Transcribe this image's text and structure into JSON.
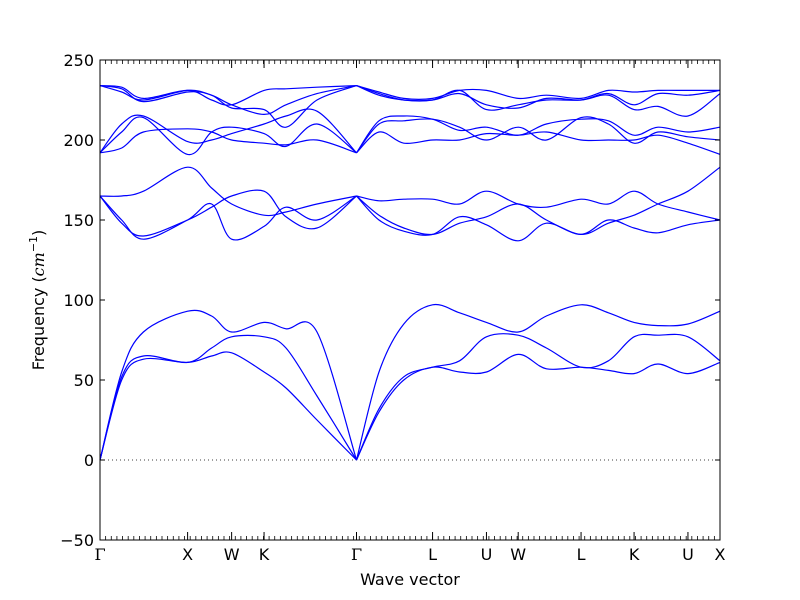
{
  "chart_data": {
    "type": "line",
    "title": "",
    "xlabel": "Wave vector",
    "ylabel": "Frequency",
    "ylabel_unit_base": "cm",
    "ylabel_unit_exp": "−1",
    "ylim": [
      -50,
      250
    ],
    "yticks": [
      -50,
      0,
      50,
      100,
      150,
      200,
      250
    ],
    "ytick_labels": [
      "−50",
      "0",
      "50",
      "100",
      "150",
      "200",
      "250"
    ],
    "xlim": [
      0,
      1
    ],
    "x_high_symmetry_points": [
      {
        "label": "Γ",
        "x": 0.0
      },
      {
        "label": "X",
        "x": 0.1413
      },
      {
        "label": "W",
        "x": 0.2123
      },
      {
        "label": "K",
        "x": 0.2646
      },
      {
        "label": "Γ",
        "x": 0.4137
      },
      {
        "label": "L",
        "x": 0.5364
      },
      {
        "label": "U",
        "x": 0.6233
      },
      {
        "label": "W",
        "x": 0.6745
      },
      {
        "label": "L",
        "x": 0.7759
      },
      {
        "label": "K",
        "x": 0.8614
      },
      {
        "label": "U",
        "x": 0.9483
      },
      {
        "label": "X",
        "x": 1.0
      }
    ],
    "zero_line": {
      "y": 0,
      "style": "dotted"
    },
    "line_color": "#0000ff",
    "grid": false,
    "legend": "none",
    "series": [
      {
        "x": [
          0,
          0.035,
          0.07,
          0.1413,
          0.18,
          0.2123,
          0.2646,
          0.3,
          0.35,
          0.4137
        ],
        "values": [
          0,
          50,
          63,
          61,
          65,
          67,
          55,
          45,
          25,
          0
        ]
      },
      {
        "x": [
          0,
          0.035,
          0.07,
          0.1413,
          0.18,
          0.2123,
          0.2646,
          0.3,
          0.35,
          0.4137
        ],
        "values": [
          0,
          52,
          65,
          61,
          70,
          77,
          77,
          70,
          40,
          0
        ]
      },
      {
        "x": [
          0,
          0.035,
          0.07,
          0.1413,
          0.18,
          0.2123,
          0.2646,
          0.3,
          0.35,
          0.4137
        ],
        "values": [
          0,
          55,
          80,
          93,
          90,
          80,
          86,
          82,
          80,
          0
        ]
      },
      {
        "x": [
          0.4137,
          0.45,
          0.49,
          0.5364,
          0.58,
          0.6233,
          0.6745,
          0.72,
          0.7759,
          0.82,
          0.8614,
          0.9,
          0.9483,
          1.0
        ],
        "values": [
          0,
          30,
          50,
          58,
          55,
          55,
          66,
          57,
          58,
          56,
          54,
          60,
          54,
          61
        ]
      },
      {
        "x": [
          0.4137,
          0.45,
          0.49,
          0.5364,
          0.58,
          0.6233,
          0.6745,
          0.72,
          0.7759,
          0.82,
          0.8614,
          0.9,
          0.9483,
          1.0
        ],
        "values": [
          0,
          32,
          52,
          58,
          62,
          77,
          78,
          70,
          58,
          62,
          77,
          78,
          77,
          62
        ]
      },
      {
        "x": [
          0.4137,
          0.45,
          0.49,
          0.5364,
          0.58,
          0.6233,
          0.6745,
          0.72,
          0.7759,
          0.82,
          0.8614,
          0.9,
          0.9483,
          1.0
        ],
        "values": [
          0,
          55,
          85,
          97,
          92,
          86,
          80,
          90,
          97,
          92,
          86,
          84,
          85,
          93
        ]
      },
      {
        "x": [
          0,
          0.035,
          0.07,
          0.1413,
          0.18,
          0.2123,
          0.2646,
          0.3,
          0.35,
          0.4137
        ],
        "values": [
          165,
          150,
          138,
          150,
          160,
          138,
          146,
          158,
          150,
          165
        ]
      },
      {
        "x": [
          0,
          0.035,
          0.07,
          0.1413,
          0.18,
          0.2123,
          0.2646,
          0.3,
          0.35,
          0.4137
        ],
        "values": [
          165,
          148,
          140,
          150,
          158,
          165,
          168,
          152,
          145,
          165
        ]
      },
      {
        "x": [
          0,
          0.035,
          0.07,
          0.1413,
          0.18,
          0.2123,
          0.2646,
          0.3,
          0.35,
          0.4137
        ],
        "values": [
          165,
          165,
          168,
          183,
          170,
          160,
          153,
          155,
          160,
          165
        ]
      },
      {
        "x": [
          0.4137,
          0.45,
          0.49,
          0.5364,
          0.58,
          0.6233,
          0.6745,
          0.72,
          0.7759,
          0.82,
          0.8614,
          0.9,
          0.9483,
          1.0
        ],
        "values": [
          165,
          150,
          143,
          141,
          152,
          147,
          137,
          148,
          141,
          150,
          145,
          142,
          147,
          150
        ]
      },
      {
        "x": [
          0.4137,
          0.45,
          0.49,
          0.5364,
          0.58,
          0.6233,
          0.6745,
          0.72,
          0.7759,
          0.82,
          0.8614,
          0.9,
          0.9483,
          1.0
        ],
        "values": [
          165,
          153,
          145,
          141,
          148,
          152,
          160,
          150,
          141,
          148,
          153,
          160,
          168,
          183
        ]
      },
      {
        "x": [
          0.4137,
          0.45,
          0.49,
          0.5364,
          0.58,
          0.6233,
          0.6745,
          0.72,
          0.7759,
          0.82,
          0.8614,
          0.9,
          0.9483,
          1.0
        ],
        "values": [
          165,
          162,
          163,
          163,
          160,
          168,
          160,
          158,
          163,
          160,
          168,
          160,
          155,
          150
        ]
      },
      {
        "x": [
          0,
          0.035,
          0.07,
          0.1413,
          0.18,
          0.2123,
          0.2646,
          0.3,
          0.35,
          0.4137
        ],
        "values": [
          192,
          195,
          205,
          207,
          205,
          200,
          198,
          197,
          200,
          192
        ]
      },
      {
        "x": [
          0,
          0.035,
          0.07,
          0.1413,
          0.18,
          0.2123,
          0.2646,
          0.3,
          0.35,
          0.4137
        ],
        "values": [
          192,
          205,
          214,
          191,
          205,
          208,
          204,
          196,
          210,
          192
        ]
      },
      {
        "x": [
          0,
          0.035,
          0.07,
          0.1413,
          0.18,
          0.2123,
          0.2646,
          0.3,
          0.35,
          0.4137
        ],
        "values": [
          192,
          210,
          215,
          199,
          200,
          204,
          210,
          215,
          218,
          192
        ]
      },
      {
        "x": [
          0.4137,
          0.45,
          0.49,
          0.5364,
          0.58,
          0.6233,
          0.6745,
          0.72,
          0.7759,
          0.82,
          0.8614,
          0.9,
          0.9483,
          1.0
        ],
        "values": [
          192,
          205,
          198,
          200,
          200,
          204,
          203,
          205,
          200,
          200,
          200,
          203,
          198,
          191
        ]
      },
      {
        "x": [
          0.4137,
          0.45,
          0.49,
          0.5364,
          0.58,
          0.6233,
          0.6745,
          0.72,
          0.7759,
          0.82,
          0.8614,
          0.9,
          0.9483,
          1.0
        ],
        "values": [
          192,
          210,
          212,
          213,
          208,
          200,
          208,
          200,
          214,
          210,
          198,
          205,
          202,
          200
        ]
      },
      {
        "x": [
          0.4137,
          0.45,
          0.49,
          0.5364,
          0.58,
          0.6233,
          0.6745,
          0.72,
          0.7759,
          0.82,
          0.8614,
          0.9,
          0.9483,
          1.0
        ],
        "values": [
          192,
          212,
          215,
          213,
          206,
          208,
          203,
          210,
          213,
          212,
          203,
          208,
          205,
          208
        ]
      },
      {
        "x": [
          0,
          0.035,
          0.07,
          0.1413,
          0.18,
          0.2123,
          0.2646,
          0.3,
          0.35,
          0.4137
        ],
        "values": [
          234,
          232,
          224,
          230,
          228,
          220,
          219,
          208,
          225,
          234
        ]
      },
      {
        "x": [
          0,
          0.035,
          0.07,
          0.1413,
          0.18,
          0.2123,
          0.2646,
          0.3,
          0.35,
          0.4137
        ],
        "values": [
          234,
          230,
          225,
          231,
          228,
          222,
          216,
          222,
          229,
          234
        ]
      },
      {
        "x": [
          0,
          0.035,
          0.07,
          0.1413,
          0.18,
          0.2123,
          0.2646,
          0.3,
          0.35,
          0.4137
        ],
        "values": [
          234,
          233,
          226,
          231,
          225,
          222,
          231,
          232,
          233,
          234
        ]
      },
      {
        "x": [
          0.4137,
          0.45,
          0.49,
          0.5364,
          0.58,
          0.6233,
          0.6745,
          0.72,
          0.7759,
          0.82,
          0.8614,
          0.9,
          0.9483,
          1.0
        ],
        "values": [
          234,
          228,
          225,
          225,
          229,
          222,
          220,
          226,
          225,
          228,
          219,
          221,
          215,
          229
        ]
      },
      {
        "x": [
          0.4137,
          0.45,
          0.49,
          0.5364,
          0.58,
          0.6233,
          0.6745,
          0.72,
          0.7759,
          0.82,
          0.8614,
          0.9,
          0.9483,
          1.0
        ],
        "values": [
          234,
          229,
          225,
          225,
          231,
          219,
          222,
          225,
          225,
          229,
          222,
          229,
          228,
          231
        ]
      },
      {
        "x": [
          0.4137,
          0.45,
          0.49,
          0.5364,
          0.58,
          0.6233,
          0.6745,
          0.72,
          0.7759,
          0.82,
          0.8614,
          0.9,
          0.9483,
          1.0
        ],
        "values": [
          234,
          230,
          226,
          226,
          231,
          231,
          226,
          228,
          226,
          231,
          230,
          231,
          231,
          231
        ]
      }
    ]
  }
}
